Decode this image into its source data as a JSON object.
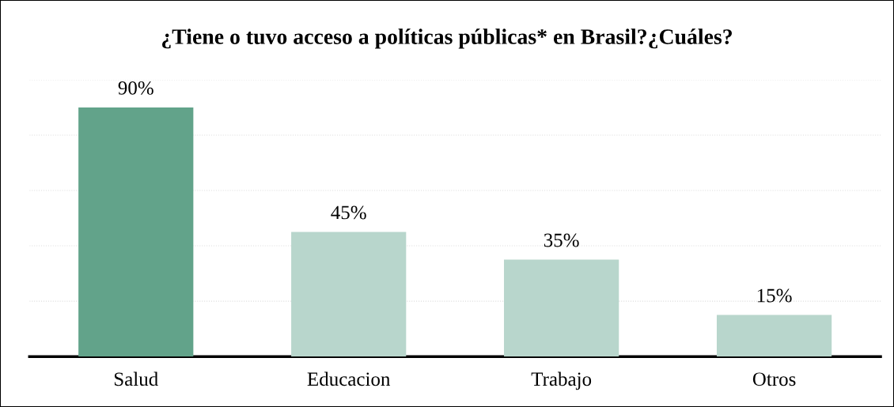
{
  "chart_data": {
    "type": "bar",
    "title": "¿Tiene o tuvo acceso a políticas públicas* en Brasil?¿Cuáles?",
    "categories": [
      "Salud",
      "Educacion",
      "Trabajo",
      "Otros"
    ],
    "values": [
      90,
      45,
      35,
      15
    ],
    "colors": [
      "#62a38a",
      "#b8d6cc",
      "#b8d6cc",
      "#b8d6cc"
    ],
    "value_labels": [
      "90%",
      "45%",
      "35%",
      "15%"
    ],
    "ylim": [
      0,
      100
    ],
    "yticks": [
      {
        "value": 20,
        "label": null
      },
      {
        "value": 40,
        "label": null
      },
      {
        "value": 60,
        "label": null
      },
      {
        "value": 80,
        "label": null
      },
      {
        "value": 100,
        "label": null
      }
    ],
    "grid": "y",
    "tick_labels": "x"
  }
}
